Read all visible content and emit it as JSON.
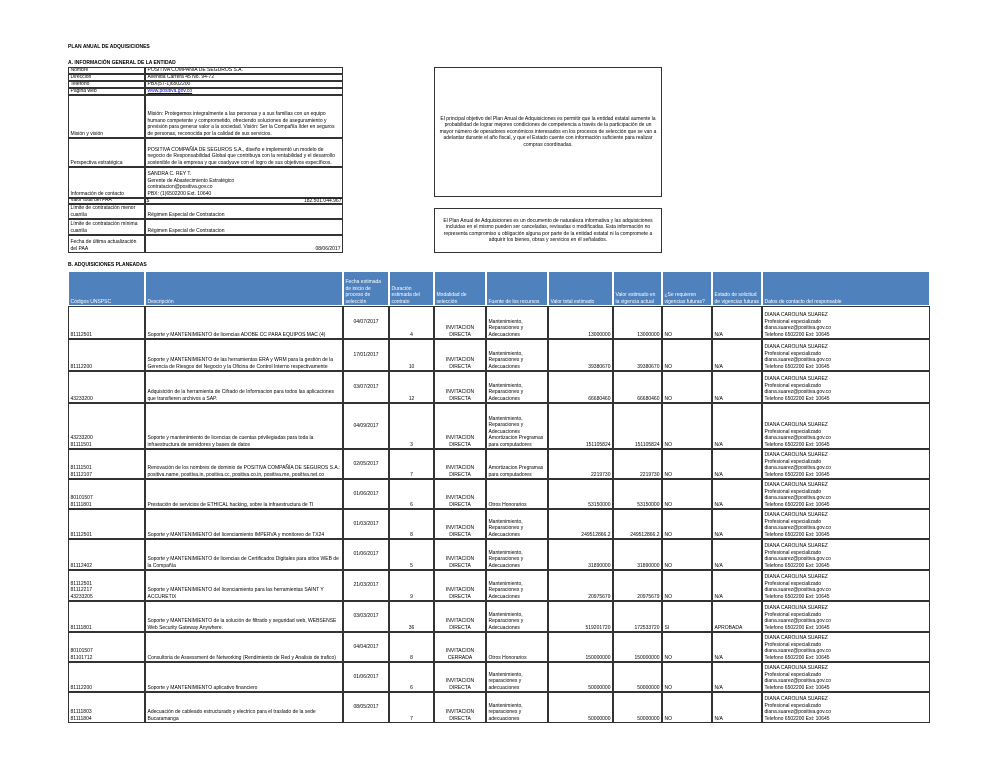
{
  "title": "PLAN ANUAL DE ADQUISICIONES",
  "section_a": {
    "heading": "A. INFORMACIÓN GENERAL DE LA ENTIDAD",
    "rows": [
      {
        "label": "Nombre",
        "value": "POSITIVA COMPAÑÍA DE SEGUROS S.A."
      },
      {
        "label": "Dirección",
        "value": "Avenida Carrera 45 No. 94-72"
      },
      {
        "label": "Teléfono",
        "value": "PBX(57-1)6502200"
      },
      {
        "label": "Página web",
        "value": "www.positiva.gov.co"
      },
      {
        "label": "Misión y visión",
        "value": "Misión: Protegemos integralmente a las personas y a sus familias con un equipo humano competente y comprometido, ofreciendo soluciones de aseguramiento y previsión para generar valor a la sociedad. Visión: Ser la Compañía líder en seguros de personas, reconocida por la calidad de sus servicios."
      },
      {
        "label": "Perspectiva estratégica",
        "value": "POSITIVA COMPAÑÍA DE SEGUROS S.A., diseño e implementó un modelo de negocio de Responsabilidad Global que contribuya con la rentabilidad y el desarrollo sostenible de la empresa y que coadyuve con el logro de sus objetivos específicos."
      },
      {
        "label": "Información de contacto",
        "value": [
          "SANDRA C. REY T.",
          "Gerente de Abastecimiento Estratégico",
          "contratacion@positiva.gov.co",
          "PBX: (1)6502200 Ext. 10640"
        ]
      },
      {
        "label": "Valor total del PAA",
        "currency": "$",
        "value": "182.501.044.967"
      },
      {
        "label": "Límite de contratación menor cuantía",
        "value": "Régimen Especial de Contratacion"
      },
      {
        "label": "Límite de contratación mínima cuantía",
        "value": "Régimen Especial de Contratacion"
      },
      {
        "label": "Fecha de última actualización del PAA",
        "value": "08/06/2017"
      }
    ],
    "notes": [
      "El principal objetivo del Plan Anual de Adquisiciones es permitir que la entidad estatal aumente la probabilidad de lograr mejores condiciones de competencia a través de la participación de un mayor número de operadores económicos interesados en los procesos de selección que se van a adelantar durante el año fiscal, y que el Estado cuente con información suficiente para realizar compras coordinadas.",
      "El Plan Anual de Adquisiciones es un documento de naturaleza informativa y las adquisiciones incluidas en el mismo pueden ser canceladas, revisadas o modificadas. Esta información no representa compromiso u obligación alguna por parte de la entidad estatal ni la compromete a adquirir los bienes, obras y servicios en él señalados."
    ]
  },
  "section_b": {
    "heading": "B. ADQUISICIONES PLANEADAS",
    "headers": [
      "Códigos UNSPSC",
      "Descripción",
      "Fecha estimada de inicio de proceso de selección",
      "Duración estimada del contrato",
      "Modalidad de selección",
      "Fuente de los recursos",
      "Valor total estimado",
      "Valor estimado en la vigencia actual",
      "¿Se requieren vigencias futuras?",
      "Estado de solicitud de vigencias futuras",
      "Datos de contacto del responsable"
    ],
    "rows": [
      [
        [
          "81112501"
        ],
        "Soporte y MANTENIMIENTO de licencias ADOBE CC PARA EQUIPOS MAC (4)",
        "04/07/2017",
        "4",
        "INVITACION DIRECTA",
        "Mantenimiento, Reparaciones y Adecuaciones",
        "13000000",
        "13000000",
        "NO",
        "N/A",
        [
          "DIANA CAROLINA SUAREZ",
          "Profesional especializado",
          "diana.suarez@positiva.gov.co",
          "Telefono 6502200 Ext: 10645"
        ]
      ],
      [
        [
          "81112200"
        ],
        "Soporte y MANTENIMIENTO de las herramientas ERA y WRM para la gestión de la Gerencia de Riesgos del Negocio y la Oficina de Control Interno respectivamente",
        "17/01/2017",
        "10",
        "INVITACION DIRECTA",
        "Mantenimiento, Reparaciones y Adecuaciones",
        "39380670",
        "39380670",
        "NO",
        "N/A",
        [
          "DIANA CAROLINA SUAREZ",
          "Profesional especializado",
          "diana.suarez@positiva.gov.co",
          "Telefono 6502200 Ext: 10645"
        ]
      ],
      [
        [
          "43233200"
        ],
        "Adquisición de la herramienta de Cifrado de Informacion para todos las aplicaciones que transfieren archivos a SAP.",
        "03/07/2017",
        "12",
        "INVITACION DIRECTA",
        "Mantenimiento, Reparaciones y Adecuaciones",
        "66680460",
        "66680460",
        "NO",
        "N/A",
        [
          "DIANA CAROLINA SUAREZ",
          "Profesional especializado",
          "diana.suarez@positiva.gov.co",
          "Telefono 6502200 Ext: 10645"
        ]
      ],
      [
        [
          "43233200",
          "81111501"
        ],
        "Soporte y mantenimiento de licencias de cuentas privilegiadas para toda la infraestructura de servidores y bases de datos",
        "04/09/2017",
        "3",
        "INVITACION DIRECTA",
        "Mantenimiento, Reparaciones y Adecuaciones Amortizacion Pregramas para computadores",
        "151105824",
        "151105824",
        "NO",
        "N/A",
        [
          "DIANA CAROLINA SUAREZ",
          "Profesional especializado",
          "diana.suarez@positiva.gov.co",
          "Telefono 6502200 Ext: 10645"
        ]
      ],
      [
        [
          "81111501",
          "81112107"
        ],
        "Renovación de los nombres de dominio de POSITIVA COMPAÑÍA DE SEGUROS S.A.: positiva.name, positiva.in, positiva.cc, positiva.co.in, positiva.me, positiva.net.co",
        "02/05/2017",
        "7",
        "INVITACION DIRECTA",
        "Amortizacion Pregramas para computadores",
        "2219730",
        "2219730",
        "NO",
        "N/A",
        [
          "DIANA CAROLINA SUAREZ",
          "Profesional especializado",
          "diana.suarez@positiva.gov.co",
          "Telefono 6502200 Ext: 10645"
        ]
      ],
      [
        [
          "80101507",
          "81111801"
        ],
        "Prestación de servicios de ETHICAL hacking, sobre la infraestructura de TI",
        "01/06/2017",
        "6",
        "INVITACION DIRECTA",
        "Otros Honorarios",
        "53150000",
        "53150000",
        "NO",
        "N/A",
        [
          "DIANA CAROLINA SUAREZ",
          "Profesional especializado",
          "diana.suarez@positiva.gov.co",
          "Telefono 6502200 Ext: 10645"
        ]
      ],
      [
        [
          "81112501"
        ],
        "Soporte y MANTENIMIENTO del licenciamiento IMPERVA y monitoreo de TX24",
        "01/03/2017",
        "8",
        "INVITACION DIRECTA",
        "Mantenimiento, Reparaciones y Adecuaciones",
        "249512866.2",
        "249512866.2",
        "NO",
        "N/A",
        [
          "DIANA CAROLINA SUAREZ",
          "Profesional especializado",
          "diana.suarez@positiva.gov.co",
          "Telefono 6502200 Ext: 10645"
        ]
      ],
      [
        [
          "81112402"
        ],
        "Soporte y MANTENIMIENTO de licencias de Certificados Digitales para sitios WEB de la Compañía",
        "01/06/2017",
        "5",
        "INVITACION DIRECTA",
        "Mantenimiento, Reparaciones y Adecuaciones",
        "31890000",
        "31890000",
        "NO",
        "N/A",
        [
          "DIANA CAROLINA SUAREZ",
          "Profesional especializado",
          "diana.suarez@positiva.gov.co",
          "Telefono 6502200 Ext: 10645"
        ]
      ],
      [
        [
          "81112501",
          "81112217",
          "43233205"
        ],
        "Soporte y MANTENIMIENTO del licenciamiento para las herramientas SAINT Y ACCURETIX",
        "21/03/2017",
        "9",
        "INVITACION DIRECTA",
        "Mantenimiento, Reparaciones y Adecuaciones",
        "20975679",
        "20975679",
        "NO",
        "N/A",
        [
          "DIANA CAROLINA SUAREZ",
          "Profesional especializado",
          "diana.suarez@positiva.gov.co",
          "Telefono 6502200 Ext: 10645"
        ]
      ],
      [
        [
          "81111801"
        ],
        "Soporte y MANTENIMIENTO de la solución de filtrado y seguridad web, WEBSENSE Web Security Gateway Anywhere.",
        "03/03/2017",
        "36",
        "INVITACION DIRECTA",
        "Mantenimiento, Reparaciones y Adecuaciones",
        "519201720",
        "172533720",
        "SI",
        "APROBADA",
        [
          "DIANA CAROLINA SUAREZ",
          "Profesional especializado",
          "diana.suarez@positiva.gov.co",
          "Telefono 6502200 Ext: 10645"
        ]
      ],
      [
        [
          "80101507",
          "81101712"
        ],
        "Consultoria de Assessment de Networking (Rendimiento de Red y Analisis de trafico)",
        "04/04/2017",
        "8",
        "INVITACION CERRADA",
        "Otros Honorarios",
        "150000000",
        "150000000",
        "NO",
        "N/A",
        [
          "DIANA CAROLINA SUAREZ",
          "Profesional especializado",
          "diana.suarez@positiva.gov.co",
          "Telefono 6502200 Ext: 10645"
        ]
      ],
      [
        [
          "81112200"
        ],
        "Soporte y MANTENIMIENTO aplicativo financiero",
        "01/06/2017",
        "6",
        "INVITACION DIRECTA",
        "Mantenimiento, reparaciones y adecuaciones",
        "50000000",
        "50000000",
        "NO",
        "N/A",
        [
          "DIANA CAROLINA SUAREZ",
          "Profesional especializado",
          "diana.suarez@positiva.gov.co",
          "Telefono 6502200 Ext: 10645"
        ]
      ],
      [
        [
          "81111803",
          "81111804"
        ],
        "Adecuación de cableado estructurado y electrico para el traslado de la sede Bucaramanga",
        "08/05/2017",
        "7",
        "INVITACION DIRECTA",
        "Mantenimiento, reparaciones y adecuaciones",
        "50000000",
        "50000000",
        "NO",
        "N/A",
        [
          "DIANA CAROLINA SUAREZ",
          "Profesional especializado",
          "diana.suarez@positiva.gov.co",
          "Telefono 6502200 Ext: 10645"
        ]
      ]
    ]
  }
}
